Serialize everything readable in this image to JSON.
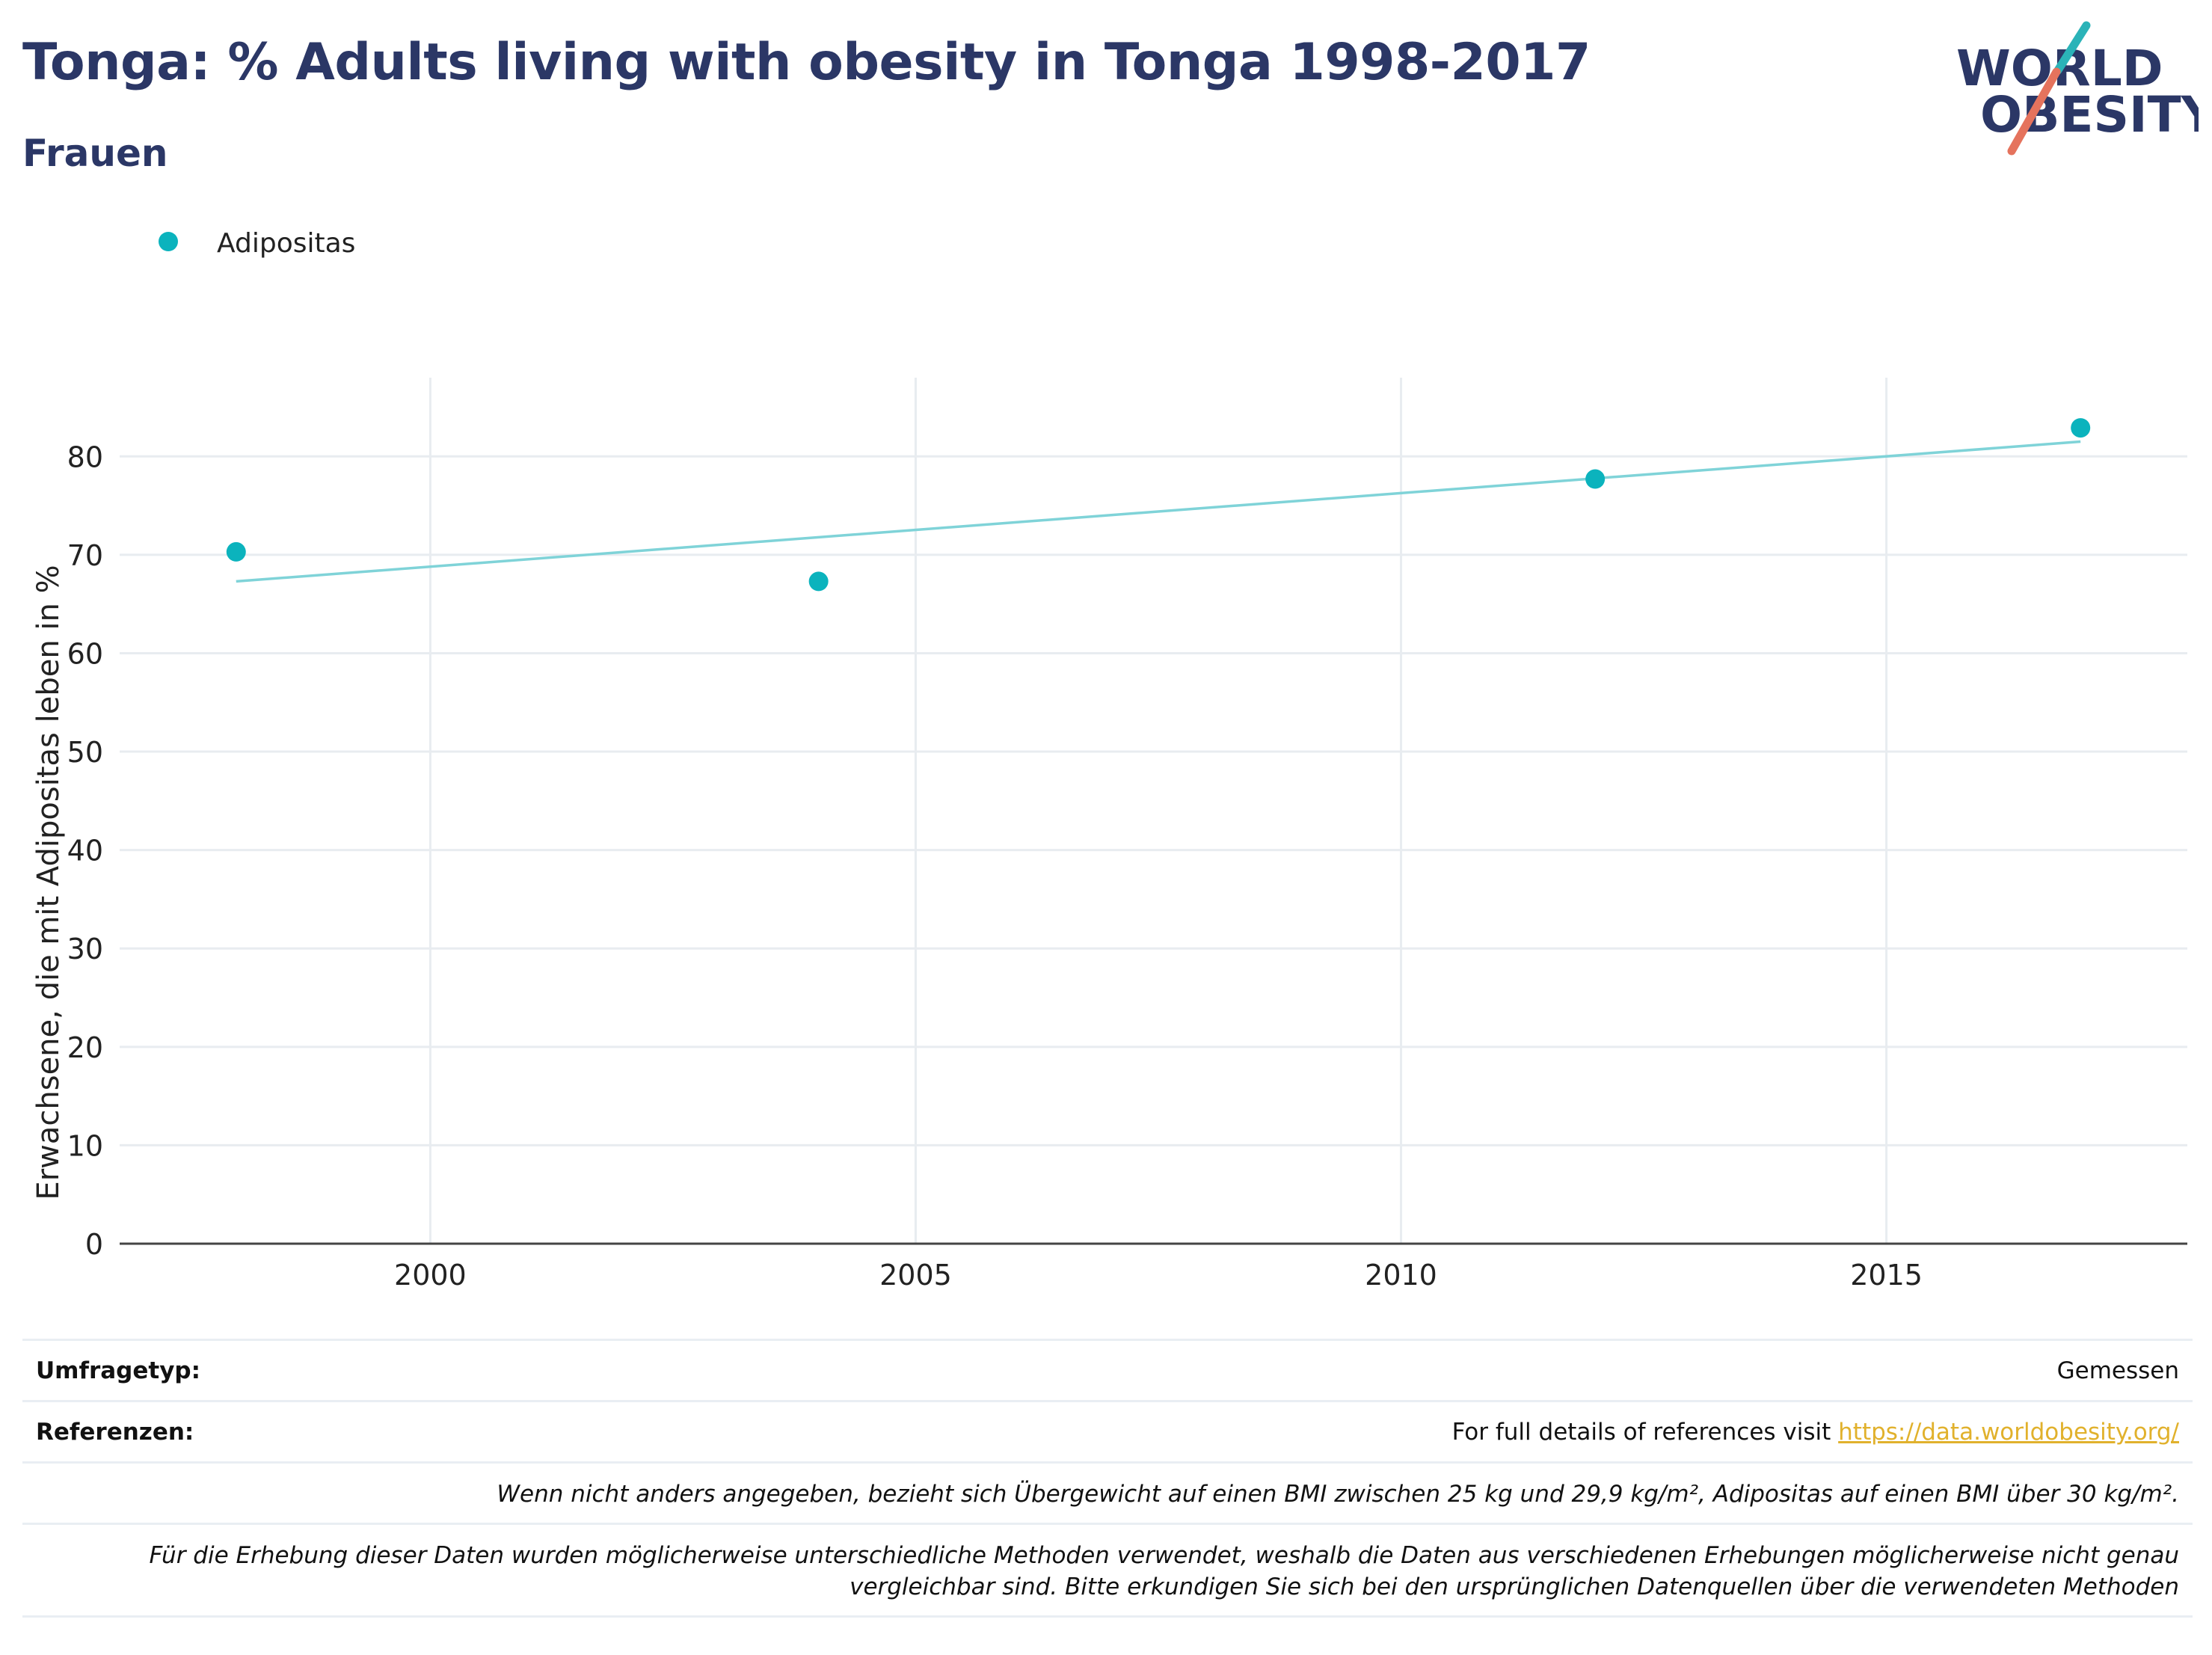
{
  "header": {
    "title": "Tonga: % Adults living with obesity in Tonga 1998-2017",
    "subtitle": "Frauen"
  },
  "logo": {
    "line1": "WORLD",
    "line2": "OBESITY",
    "colors": {
      "text": "#2b3766",
      "slash_top": "#2bb3b8",
      "slash_bottom": "#e5735d"
    }
  },
  "colors": {
    "points": "#0bb3bd",
    "trend": "#7fd3d8",
    "grid": "#e8ecf0",
    "axis": "#444444",
    "title": "#2b3766",
    "link": "#e1b12c"
  },
  "chart_data": {
    "type": "scatter",
    "ylabel": "Erwachsene, die mit Adipositas leben in %",
    "xlabel": "",
    "xlim": [
      1996.8,
      2018.1
    ],
    "ylim": [
      0,
      88
    ],
    "x_ticks": [
      2000,
      2005,
      2010,
      2015
    ],
    "y_ticks": [
      0,
      10,
      20,
      30,
      40,
      50,
      60,
      70,
      80
    ],
    "grid": true,
    "legend": {
      "position": "top-left",
      "entries": [
        "Adipositas"
      ]
    },
    "series": [
      {
        "name": "Adipositas",
        "x": [
          1998,
          2004,
          2012,
          2017
        ],
        "y": [
          70.3,
          67.3,
          77.7,
          82.9
        ]
      }
    ],
    "trendline": {
      "x": [
        1998,
        2017
      ],
      "y": [
        67.3,
        81.5
      ]
    }
  },
  "footer": {
    "survey_label": "Umfragetyp:",
    "survey_value": "Gemessen",
    "references_label": "Referenzen:",
    "references_text": "For full details of references visit ",
    "references_link": "https://data.worldobesity.org/",
    "note1": "Wenn nicht anders angegeben, bezieht sich Übergewicht auf einen BMI zwischen 25 kg und 29,9 kg/m², Adipositas auf einen BMI über 30 kg/m².",
    "note2_line1": "Für die Erhebung dieser Daten wurden möglicherweise unterschiedliche Methoden verwendet, weshalb die Daten aus verschiedenen Erhebungen möglicherweise nicht genau",
    "note2_line2": "vergleichbar sind. Bitte erkundigen Sie sich bei den ursprünglichen Datenquellen über die verwendeten Methoden"
  }
}
